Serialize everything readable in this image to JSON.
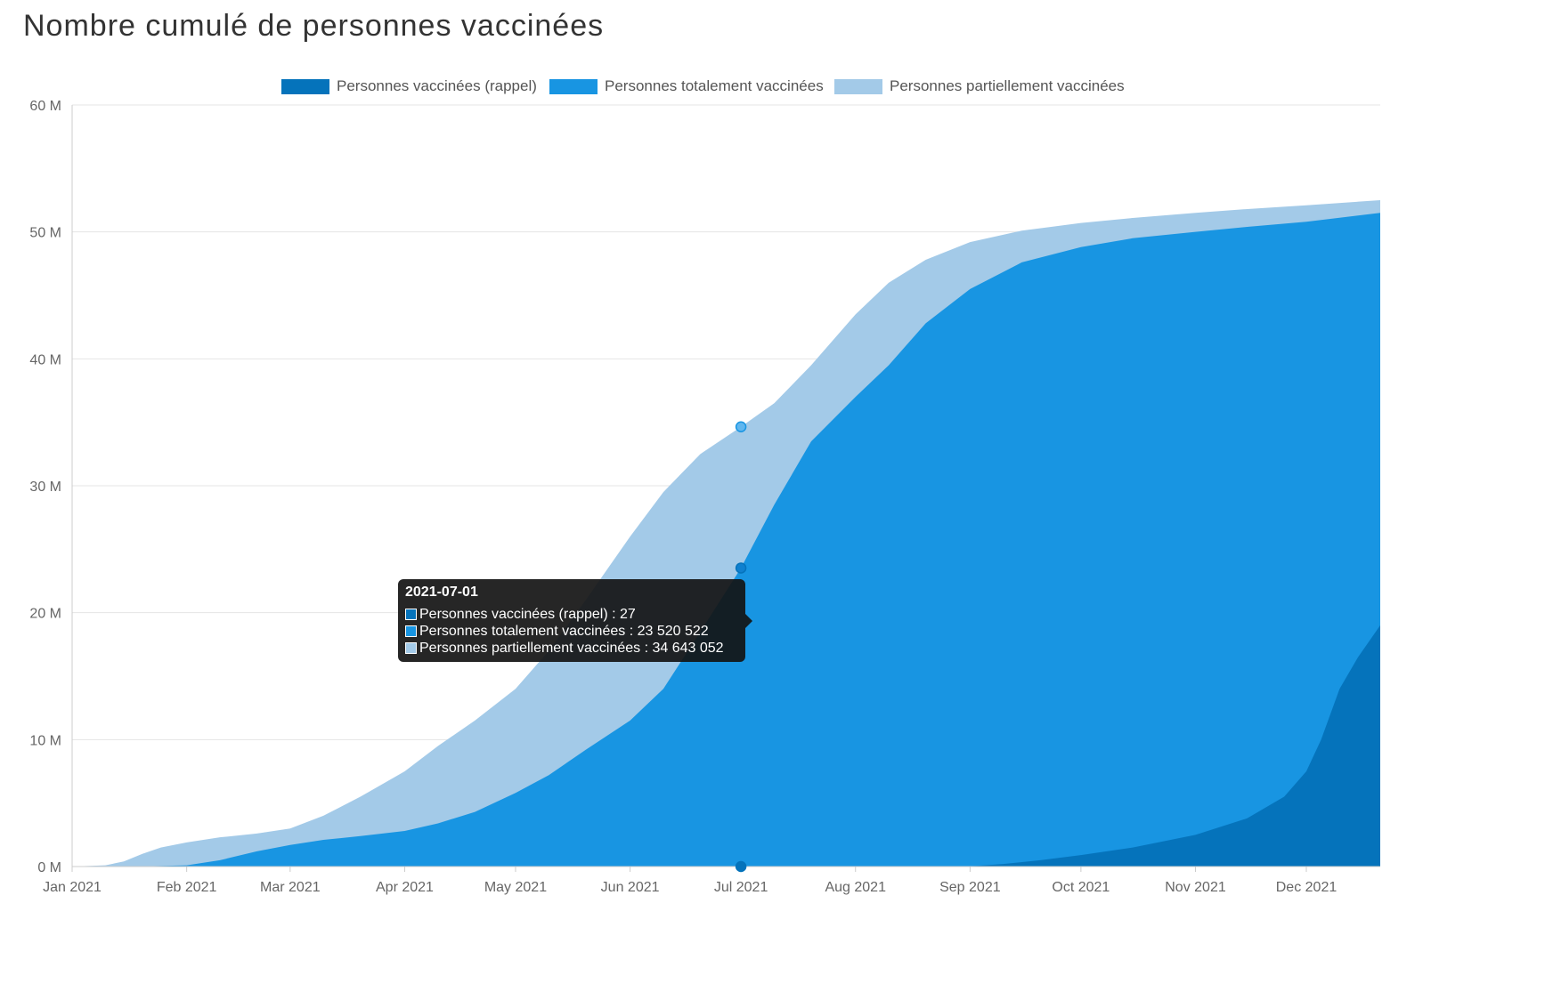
{
  "page_title": "Nombre cumulé de personnes vaccinées",
  "colors": {
    "rappel": "#0573bb",
    "totalement": "#1895e2",
    "partiellement": "#a3cae8",
    "grid": "#e4e4e4",
    "axis": "#cccccc"
  },
  "legend": [
    {
      "label": "Personnes vaccinées (rappel)",
      "color": "#0573bb"
    },
    {
      "label": "Personnes totalement vaccinées",
      "color": "#1895e2"
    },
    {
      "label": "Personnes partiellement vaccinées",
      "color": "#a3cae8"
    }
  ],
  "tooltip": {
    "date": "2021-07-01",
    "rows": [
      {
        "text": "Personnes vaccinées (rappel) : 27",
        "color": "#0573bb"
      },
      {
        "text": "Personnes totalement vaccinées : 23 520 522",
        "color": "#1895e2"
      },
      {
        "text": "Personnes partiellement vaccinées : 34 643 052",
        "color": "#a3cae8"
      }
    ]
  },
  "chart_data": {
    "type": "area",
    "title": "Nombre cumulé de personnes vaccinées",
    "xlabel": "",
    "ylabel": "",
    "ylim": [
      0,
      60000000
    ],
    "y_ticks": [
      {
        "value": 0,
        "label": "0 M"
      },
      {
        "value": 10000000,
        "label": "10 M"
      },
      {
        "value": 20000000,
        "label": "20 M"
      },
      {
        "value": 30000000,
        "label": "30 M"
      },
      {
        "value": 40000000,
        "label": "40 M"
      },
      {
        "value": 50000000,
        "label": "50 M"
      },
      {
        "value": 60000000,
        "label": "60 M"
      }
    ],
    "x_start": "2021-01-01",
    "x_end": "2021-12-21",
    "x_ticks": [
      {
        "date": "2021-01-01",
        "label": "Jan 2021"
      },
      {
        "date": "2021-02-01",
        "label": "Feb 2021"
      },
      {
        "date": "2021-03-01",
        "label": "Mar 2021"
      },
      {
        "date": "2021-04-01",
        "label": "Apr 2021"
      },
      {
        "date": "2021-05-01",
        "label": "May 2021"
      },
      {
        "date": "2021-06-01",
        "label": "Jun 2021"
      },
      {
        "date": "2021-07-01",
        "label": "Jul 2021"
      },
      {
        "date": "2021-08-01",
        "label": "Aug 2021"
      },
      {
        "date": "2021-09-01",
        "label": "Sep 2021"
      },
      {
        "date": "2021-10-01",
        "label": "Oct 2021"
      },
      {
        "date": "2021-11-01",
        "label": "Nov 2021"
      },
      {
        "date": "2021-12-01",
        "label": "Dec 2021"
      }
    ],
    "series": [
      {
        "name": "Personnes partiellement vaccinées",
        "color": "#a3cae8",
        "points": [
          [
            "2021-01-01",
            0
          ],
          [
            "2021-01-10",
            100000
          ],
          [
            "2021-01-15",
            400000
          ],
          [
            "2021-01-20",
            1000000
          ],
          [
            "2021-01-25",
            1500000
          ],
          [
            "2021-02-01",
            1900000
          ],
          [
            "2021-02-10",
            2300000
          ],
          [
            "2021-02-20",
            2600000
          ],
          [
            "2021-03-01",
            3000000
          ],
          [
            "2021-03-10",
            4000000
          ],
          [
            "2021-03-20",
            5500000
          ],
          [
            "2021-04-01",
            7500000
          ],
          [
            "2021-04-10",
            9500000
          ],
          [
            "2021-04-20",
            11500000
          ],
          [
            "2021-05-01",
            14000000
          ],
          [
            "2021-05-10",
            17000000
          ],
          [
            "2021-05-20",
            21000000
          ],
          [
            "2021-06-01",
            26000000
          ],
          [
            "2021-06-10",
            29500000
          ],
          [
            "2021-06-20",
            32500000
          ],
          [
            "2021-07-01",
            34643052
          ],
          [
            "2021-07-10",
            36500000
          ],
          [
            "2021-07-20",
            39500000
          ],
          [
            "2021-08-01",
            43500000
          ],
          [
            "2021-08-10",
            46000000
          ],
          [
            "2021-08-20",
            47800000
          ],
          [
            "2021-09-01",
            49200000
          ],
          [
            "2021-09-15",
            50100000
          ],
          [
            "2021-10-01",
            50700000
          ],
          [
            "2021-10-15",
            51100000
          ],
          [
            "2021-11-01",
            51500000
          ],
          [
            "2021-11-15",
            51800000
          ],
          [
            "2021-12-01",
            52100000
          ],
          [
            "2021-12-21",
            52500000
          ]
        ]
      },
      {
        "name": "Personnes totalement vaccinées",
        "color": "#1895e2",
        "points": [
          [
            "2021-01-01",
            0
          ],
          [
            "2021-01-18",
            0
          ],
          [
            "2021-02-01",
            100000
          ],
          [
            "2021-02-10",
            500000
          ],
          [
            "2021-02-20",
            1200000
          ],
          [
            "2021-03-01",
            1700000
          ],
          [
            "2021-03-10",
            2100000
          ],
          [
            "2021-03-20",
            2400000
          ],
          [
            "2021-04-01",
            2800000
          ],
          [
            "2021-04-10",
            3400000
          ],
          [
            "2021-04-20",
            4300000
          ],
          [
            "2021-05-01",
            5800000
          ],
          [
            "2021-05-10",
            7200000
          ],
          [
            "2021-05-20",
            9200000
          ],
          [
            "2021-06-01",
            11500000
          ],
          [
            "2021-06-10",
            14000000
          ],
          [
            "2021-06-20",
            18500000
          ],
          [
            "2021-07-01",
            23520522
          ],
          [
            "2021-07-10",
            28500000
          ],
          [
            "2021-07-20",
            33500000
          ],
          [
            "2021-08-01",
            37000000
          ],
          [
            "2021-08-10",
            39500000
          ],
          [
            "2021-08-20",
            42800000
          ],
          [
            "2021-09-01",
            45500000
          ],
          [
            "2021-09-15",
            47600000
          ],
          [
            "2021-10-01",
            48800000
          ],
          [
            "2021-10-15",
            49500000
          ],
          [
            "2021-11-01",
            50000000
          ],
          [
            "2021-11-15",
            50400000
          ],
          [
            "2021-12-01",
            50800000
          ],
          [
            "2021-12-21",
            51500000
          ]
        ]
      },
      {
        "name": "Personnes vaccinées (rappel)",
        "color": "#0573bb",
        "points": [
          [
            "2021-01-01",
            0
          ],
          [
            "2021-07-01",
            27
          ],
          [
            "2021-08-31",
            0
          ],
          [
            "2021-09-10",
            200000
          ],
          [
            "2021-09-20",
            500000
          ],
          [
            "2021-10-01",
            900000
          ],
          [
            "2021-10-15",
            1500000
          ],
          [
            "2021-11-01",
            2500000
          ],
          [
            "2021-11-15",
            3800000
          ],
          [
            "2021-11-25",
            5500000
          ],
          [
            "2021-12-01",
            7500000
          ],
          [
            "2021-12-05",
            10000000
          ],
          [
            "2021-12-10",
            14000000
          ],
          [
            "2021-12-15",
            16500000
          ],
          [
            "2021-12-21",
            19000000
          ]
        ]
      }
    ],
    "highlight": {
      "date": "2021-07-01",
      "values": [
        34643052,
        23520522,
        27
      ]
    }
  }
}
